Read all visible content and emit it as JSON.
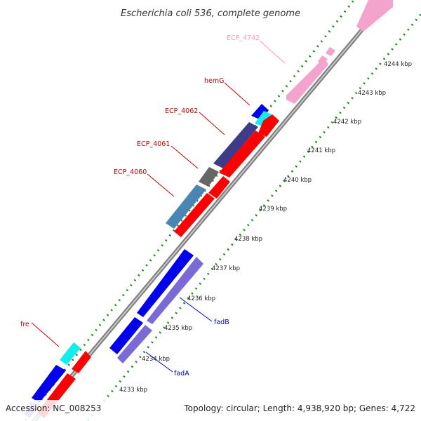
{
  "title": "Escherichia coli 536, complete genome",
  "footer": {
    "accession": "Accession: NC_008253",
    "summary": "Topology: circular; Length: 4,938,920 bp; Genes: 4,722"
  },
  "kbp_labels": [
    "4244 kbp",
    "4243 kbp",
    "4242 kbp",
    "4241 kbp",
    "4240 kbp",
    "4239 kbp",
    "4238 kbp",
    "4237 kbp",
    "4236 kbp",
    "4235 kbp",
    "4234 kbp",
    "4233 kbp"
  ],
  "gene_labels": [
    {
      "id": "ECP_4742",
      "text": "ECP_4742",
      "color": "#f49ac2"
    },
    {
      "id": "hemG",
      "text": "hemG",
      "color": "#cc0000"
    },
    {
      "id": "ECP_4062",
      "text": "ECP_4062",
      "color": "#cc0000"
    },
    {
      "id": "ECP_4061",
      "text": "ECP_4061",
      "color": "#cc0000"
    },
    {
      "id": "ECP_4060",
      "text": "ECP_4060",
      "color": "#cc0000"
    },
    {
      "id": "fre",
      "text": "fre",
      "color": "#cc0000"
    },
    {
      "id": "fadB",
      "text": "fadB",
      "color": "#0000cc"
    },
    {
      "id": "fadA",
      "text": "fadA",
      "color": "#0000cc"
    }
  ],
  "colors": {
    "backbone": "#9a9a9a",
    "gc_ticks": "#1a8a1a",
    "red": "#ff0000",
    "blue": "#0000ee",
    "pink": "#f4a3cc",
    "cyan": "#11eeee",
    "navy": "#3c3c8a",
    "gray": "#666666",
    "steel": "#4a86b4",
    "violet": "#7a6ad8"
  }
}
